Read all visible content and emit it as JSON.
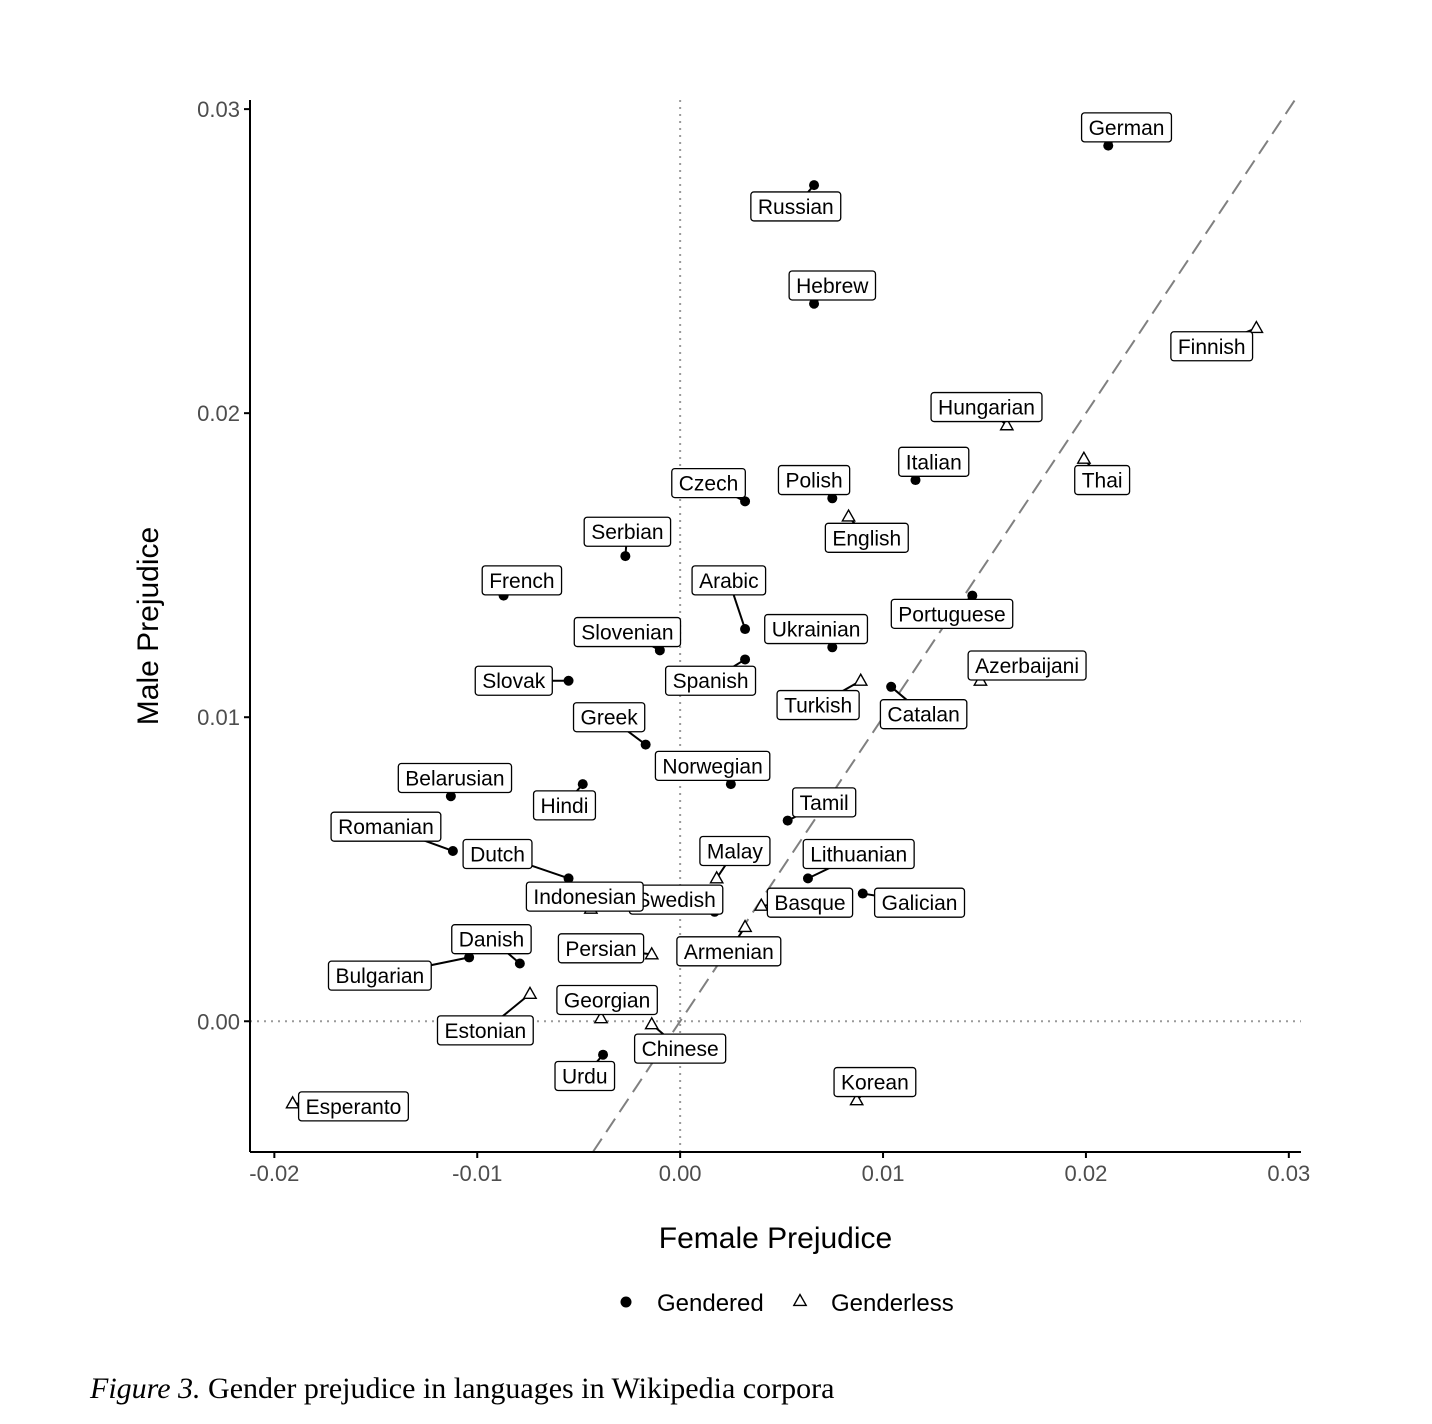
{
  "caption": {
    "figure_number": "Figure 3.",
    "text": "Gender prejudice in languages in Wikipedia corpora"
  },
  "colors": {
    "points": "#000000",
    "identity_line": "#808080",
    "zero_lines": "#9a9a9a",
    "axis": "#000000",
    "tick_label": "#4d4d4d",
    "label_box_border": "#000000",
    "label_box_fill": "#ffffff"
  },
  "chart_data": {
    "type": "scatter",
    "title": "",
    "xlabel": "Female Prejudice",
    "ylabel": "Male Prejudice",
    "xlim": [
      -0.0212,
      0.0306
    ],
    "ylim": [
      -0.0043,
      0.0303
    ],
    "xticks": [
      -0.02,
      -0.01,
      0.0,
      0.01,
      0.02,
      0.03
    ],
    "xtick_labels": [
      "-0.02",
      "-0.01",
      "0.00",
      "0.01",
      "0.02",
      "0.03"
    ],
    "yticks": [
      0.0,
      0.01,
      0.02,
      0.03
    ],
    "ytick_labels": [
      "0.00",
      "0.01",
      "0.02",
      "0.03"
    ],
    "reference_lines": {
      "x_zero": "dotted",
      "y_zero": "dotted",
      "identity_y_equals_x": "dashed"
    },
    "grid": false,
    "legend": {
      "position": "bottom",
      "entries": [
        {
          "name": "Gendered",
          "marker": "filled-circle"
        },
        {
          "name": "Genderless",
          "marker": "open-triangle"
        }
      ]
    },
    "series": [
      {
        "name": "Gendered",
        "marker": "filled-circle",
        "points": [
          {
            "label": "German",
            "x": 0.0211,
            "y": 0.0288,
            "label_x": 0.022,
            "label_y": 0.0294
          },
          {
            "label": "Russian",
            "x": 0.0066,
            "y": 0.0275,
            "label_x": 0.0057,
            "label_y": 0.0268
          },
          {
            "label": "Hebrew",
            "x": 0.0066,
            "y": 0.0236,
            "label_x": 0.0075,
            "label_y": 0.0242
          },
          {
            "label": "Italian",
            "x": 0.0116,
            "y": 0.0178,
            "label_x": 0.0125,
            "label_y": 0.0184
          },
          {
            "label": "Polish",
            "x": 0.0075,
            "y": 0.0172,
            "label_x": 0.0066,
            "label_y": 0.0178
          },
          {
            "label": "Czech",
            "x": 0.0032,
            "y": 0.0171,
            "label_x": 0.0014,
            "label_y": 0.0177
          },
          {
            "label": "Serbian",
            "x": -0.0027,
            "y": 0.0153,
            "label_x": -0.0026,
            "label_y": 0.0161
          },
          {
            "label": "French",
            "x": -0.0087,
            "y": 0.014,
            "label_x": -0.0078,
            "label_y": 0.0145
          },
          {
            "label": "Arabic",
            "x": 0.0032,
            "y": 0.0129,
            "label_x": 0.0024,
            "label_y": 0.0145
          },
          {
            "label": "Portuguese",
            "x": 0.0144,
            "y": 0.014,
            "label_x": 0.0134,
            "label_y": 0.0134
          },
          {
            "label": "Ukrainian",
            "x": 0.0075,
            "y": 0.0123,
            "label_x": 0.0067,
            "label_y": 0.0129
          },
          {
            "label": "Slovenian",
            "x": -0.001,
            "y": 0.0122,
            "label_x": -0.0026,
            "label_y": 0.0128
          },
          {
            "label": "Spanish",
            "x": 0.0032,
            "y": 0.0119,
            "label_x": 0.0015,
            "label_y": 0.0112
          },
          {
            "label": "Slovak",
            "x": -0.0055,
            "y": 0.0112,
            "label_x": -0.0082,
            "label_y": 0.0112
          },
          {
            "label": "Catalan",
            "x": 0.0104,
            "y": 0.011,
            "label_x": 0.012,
            "label_y": 0.0101
          },
          {
            "label": "Greek",
            "x": -0.0017,
            "y": 0.0091,
            "label_x": -0.0035,
            "label_y": 0.01
          },
          {
            "label": "Norwegian",
            "x": 0.0025,
            "y": 0.0078,
            "label_x": 0.0016,
            "label_y": 0.0084
          },
          {
            "label": "Hindi",
            "x": -0.0048,
            "y": 0.0078,
            "label_x": -0.0057,
            "label_y": 0.0071
          },
          {
            "label": "Belarusian",
            "x": -0.0113,
            "y": 0.0074,
            "label_x": -0.0111,
            "label_y": 0.008
          },
          {
            "label": "Tamil",
            "x": 0.0053,
            "y": 0.0066,
            "label_x": 0.0071,
            "label_y": 0.0072
          },
          {
            "label": "Romanian",
            "x": -0.0112,
            "y": 0.0056,
            "label_x": -0.0145,
            "label_y": 0.0064
          },
          {
            "label": "Dutch",
            "x": -0.0055,
            "y": 0.0047,
            "label_x": -0.009,
            "label_y": 0.0055
          },
          {
            "label": "Lithuanian",
            "x": 0.0063,
            "y": 0.0047,
            "label_x": 0.0088,
            "label_y": 0.0055
          },
          {
            "label": "Galician",
            "x": 0.009,
            "y": 0.0042,
            "label_x": 0.0118,
            "label_y": 0.0039
          },
          {
            "label": "Swedish",
            "x": 0.0017,
            "y": 0.0036,
            "label_x": -0.0002,
            "label_y": 0.004
          },
          {
            "label": "Danish",
            "x": -0.0079,
            "y": 0.0019,
            "label_x": -0.0093,
            "label_y": 0.0027
          },
          {
            "label": "Bulgarian",
            "x": -0.0104,
            "y": 0.0021,
            "label_x": -0.0148,
            "label_y": 0.0015
          },
          {
            "label": "Urdu",
            "x": -0.0038,
            "y": -0.0011,
            "label_x": -0.0047,
            "label_y": -0.0018
          }
        ]
      },
      {
        "name": "Genderless",
        "marker": "open-triangle",
        "points": [
          {
            "label": "Finnish",
            "x": 0.0284,
            "y": 0.0228,
            "label_x": 0.0262,
            "label_y": 0.0222
          },
          {
            "label": "Hungarian",
            "x": 0.0161,
            "y": 0.0196,
            "label_x": 0.0151,
            "label_y": 0.0202
          },
          {
            "label": "Thai",
            "x": 0.0199,
            "y": 0.0185,
            "label_x": 0.0208,
            "label_y": 0.0178
          },
          {
            "label": "English",
            "x": 0.0083,
            "y": 0.0166,
            "label_x": 0.0092,
            "label_y": 0.0159
          },
          {
            "label": "Azerbaijani",
            "x": 0.0148,
            "y": 0.0112,
            "label_x": 0.0171,
            "label_y": 0.0117
          },
          {
            "label": "Turkish",
            "x": 0.0089,
            "y": 0.0112,
            "label_x": 0.0068,
            "label_y": 0.0104
          },
          {
            "label": "Malay",
            "x": 0.0018,
            "y": 0.0047,
            "label_x": 0.0027,
            "label_y": 0.0056
          },
          {
            "label": "Indonesian",
            "x": -0.0044,
            "y": 0.0037,
            "label_x": -0.0047,
            "label_y": 0.0041
          },
          {
            "label": "Basque",
            "x": 0.004,
            "y": 0.0038,
            "label_x": 0.0064,
            "label_y": 0.0039
          },
          {
            "label": "Armenian",
            "x": 0.0032,
            "y": 0.0031,
            "label_x": 0.0024,
            "label_y": 0.0023
          },
          {
            "label": "Persian",
            "x": -0.0014,
            "y": 0.0022,
            "label_x": -0.0039,
            "label_y": 0.0024
          },
          {
            "label": "Estonian",
            "x": -0.0074,
            "y": 0.0009,
            "label_x": -0.0096,
            "label_y": -0.0003
          },
          {
            "label": "Georgian",
            "x": -0.0039,
            "y": 0.0001,
            "label_x": -0.0036,
            "label_y": 0.0007
          },
          {
            "label": "Chinese",
            "x": -0.0014,
            "y": -0.0001,
            "label_x": 0.0,
            "label_y": -0.0009
          },
          {
            "label": "Korean",
            "x": 0.0087,
            "y": -0.0026,
            "label_x": 0.0096,
            "label_y": -0.002
          },
          {
            "label": "Esperanto",
            "x": -0.0191,
            "y": -0.0027,
            "label_x": -0.0161,
            "label_y": -0.0028
          }
        ]
      }
    ]
  }
}
